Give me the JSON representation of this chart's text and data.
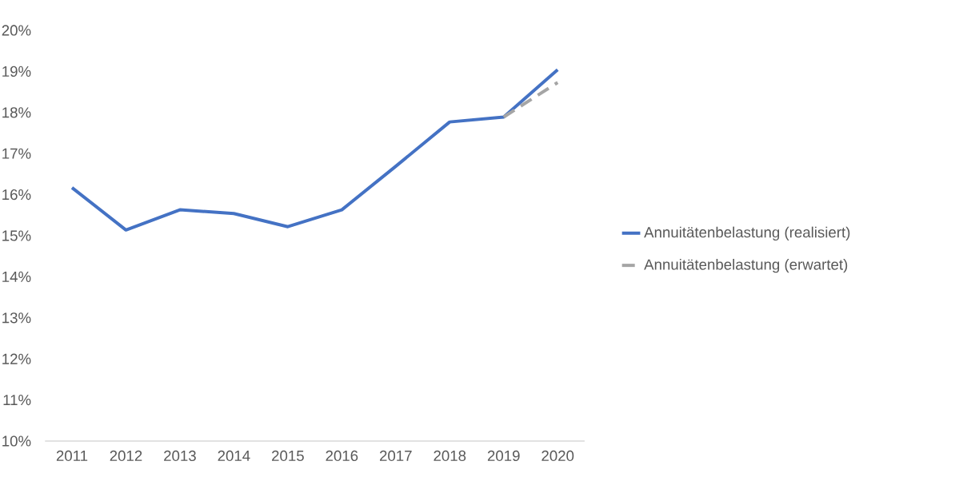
{
  "chart_data": {
    "type": "line",
    "categories": [
      "2011",
      "2012",
      "2013",
      "2014",
      "2015",
      "2016",
      "2017",
      "2018",
      "2019",
      "2020"
    ],
    "series": [
      {
        "name": "Annuitätenbelastung (realisiert)",
        "color": "#4472c4",
        "line_style": "solid",
        "values": [
          16.17,
          15.14,
          15.63,
          15.54,
          15.22,
          15.63,
          16.69,
          17.77,
          17.89,
          19.04
        ]
      },
      {
        "name": "Annuitätenbelastung (erwartet)",
        "color": "#a5a5a5",
        "line_style": "dashed",
        "values": [
          null,
          null,
          null,
          null,
          null,
          null,
          null,
          null,
          17.89,
          18.73
        ]
      }
    ],
    "ylim": [
      10,
      20
    ],
    "yticks": [
      {
        "value": 10,
        "label": "10%"
      },
      {
        "value": 11,
        "label": "11%"
      },
      {
        "value": 12,
        "label": "12%"
      },
      {
        "value": 13,
        "label": "13%"
      },
      {
        "value": 14,
        "label": "14%"
      },
      {
        "value": 15,
        "label": "15%"
      },
      {
        "value": 16,
        "label": "16%"
      },
      {
        "value": 17,
        "label": "17%"
      },
      {
        "value": 18,
        "label": "18%"
      },
      {
        "value": 19,
        "label": "19%"
      },
      {
        "value": 20,
        "label": "20%"
      }
    ],
    "grid": false,
    "legend": "right"
  }
}
